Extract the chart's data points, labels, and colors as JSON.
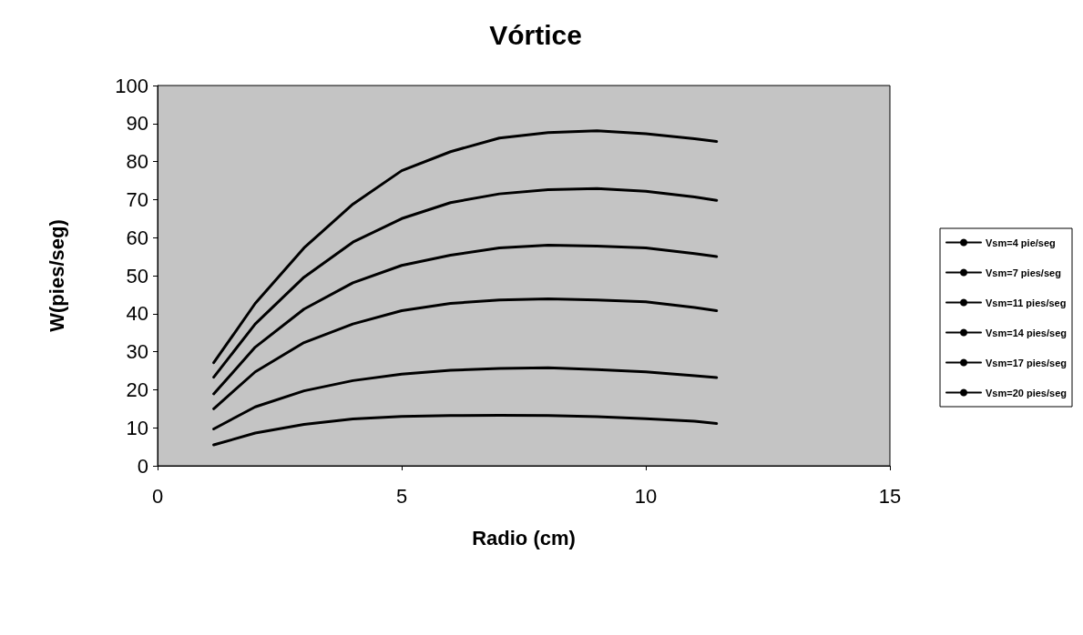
{
  "chart_data": {
    "type": "line",
    "title": "Vórtice",
    "xlabel": "Radio (cm)",
    "ylabel": "W(pies/seg)",
    "x": [
      1.15,
      2,
      3,
      4,
      5,
      6,
      7,
      8,
      9,
      10,
      11,
      11.45
    ],
    "series": [
      {
        "name": "Vsm=4 pie/seg",
        "color": "#000000",
        "values": [
          5.5,
          8.6,
          10.9,
          12.3,
          13.0,
          13.2,
          13.3,
          13.2,
          12.9,
          12.4,
          11.7,
          11.1
        ]
      },
      {
        "name": "Vsm=7 pies/seg",
        "color": "#000000",
        "values": [
          9.7,
          15.5,
          19.7,
          22.4,
          24.1,
          25.1,
          25.6,
          25.8,
          25.3,
          24.7,
          23.7,
          23.2
        ]
      },
      {
        "name": "Vsm=11 pies/seg",
        "color": "#000000",
        "values": [
          15.0,
          24.7,
          32.4,
          37.3,
          40.8,
          42.7,
          43.6,
          43.9,
          43.6,
          43.1,
          41.6,
          40.8
        ]
      },
      {
        "name": "Vsm=14 pies/seg",
        "color": "#000000",
        "values": [
          18.9,
          31.2,
          41.2,
          48.1,
          52.7,
          55.4,
          57.3,
          58.0,
          57.8,
          57.3,
          55.8,
          55.0
        ]
      },
      {
        "name": "Vsm=17 pies/seg",
        "color": "#000000",
        "values": [
          23.3,
          37.3,
          49.6,
          58.8,
          65.0,
          69.2,
          71.5,
          72.6,
          72.9,
          72.2,
          70.7,
          69.8
        ]
      },
      {
        "name": "Vsm=20 pies/seg",
        "color": "#000000",
        "values": [
          27.1,
          42.7,
          57.3,
          68.8,
          77.6,
          82.6,
          86.2,
          87.6,
          88.1,
          87.3,
          86.0,
          85.3
        ]
      }
    ],
    "xlim": [
      0,
      15
    ],
    "xticks": [
      0,
      5,
      10,
      15
    ],
    "ylim": [
      0,
      100
    ],
    "yticks": [
      0,
      10,
      20,
      30,
      40,
      50,
      60,
      70,
      80,
      90,
      100
    ],
    "grid": false,
    "legend": "right",
    "marker": "none",
    "line_style": "solid"
  }
}
